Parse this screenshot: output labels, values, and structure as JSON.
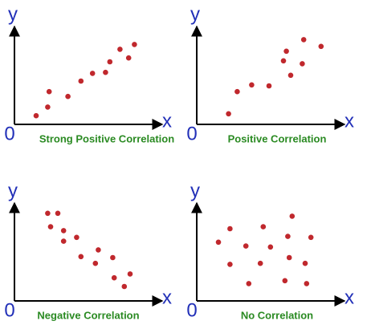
{
  "chart_data": [
    {
      "type": "scatter",
      "title": "Strong Positive Correlation",
      "xlabel": "x",
      "ylabel": "y",
      "color": "#c0282d",
      "xlim": [
        0,
        10
      ],
      "ylim": [
        0,
        10
      ],
      "xticks": [
        0
      ],
      "x": [
        1.5,
        2.3,
        2.4,
        3.7,
        4.6,
        5.4,
        6.3,
        6.6,
        7.3,
        7.9,
        8.3
      ],
      "values": [
        0.9,
        1.8,
        3.4,
        2.9,
        4.5,
        5.3,
        5.4,
        6.5,
        7.8,
        6.9,
        8.3
      ]
    },
    {
      "type": "scatter",
      "title": "Positive Correlation",
      "xlabel": "x",
      "ylabel": "y",
      "color": "#c0282d",
      "xlim": [
        0,
        10
      ],
      "ylim": [
        0,
        10
      ],
      "xticks": [
        0
      ],
      "x": [
        2.2,
        2.8,
        3.8,
        5.0,
        6.2,
        6.0,
        6.5,
        7.4,
        7.3,
        8.6
      ],
      "values": [
        1.1,
        3.4,
        4.1,
        4.0,
        7.6,
        6.6,
        5.1,
        8.8,
        6.3,
        8.1
      ]
    },
    {
      "type": "scatter",
      "title": "Negative Correlation",
      "xlabel": "x",
      "ylabel": "y",
      "color": "#c0282d",
      "xlim": [
        0,
        10
      ],
      "ylim": [
        0,
        10
      ],
      "xticks": [
        0
      ],
      "x": [
        2.3,
        3.0,
        2.5,
        3.4,
        3.4,
        4.3,
        4.6,
        5.6,
        5.8,
        6.8,
        6.9,
        7.6,
        8.0
      ],
      "values": [
        9.1,
        9.1,
        7.7,
        7.3,
        6.2,
        6.6,
        4.6,
        3.9,
        5.3,
        4.5,
        2.4,
        1.5,
        2.8
      ]
    },
    {
      "type": "scatter",
      "title": "No Correlation",
      "xlabel": "x",
      "ylabel": "y",
      "color": "#c0282d",
      "xlim": [
        0,
        10
      ],
      "ylim": [
        0,
        10
      ],
      "xticks": [
        0
      ],
      "x": [
        1.5,
        2.3,
        2.3,
        3.4,
        3.6,
        4.6,
        4.4,
        5.1,
        6.1,
        6.4,
        6.3,
        6.6,
        7.5,
        7.6,
        7.9
      ],
      "values": [
        6.1,
        7.5,
        3.8,
        5.7,
        1.8,
        7.7,
        3.9,
        5.6,
        2.1,
        4.5,
        6.7,
        8.8,
        3.9,
        1.8,
        6.6
      ]
    }
  ]
}
